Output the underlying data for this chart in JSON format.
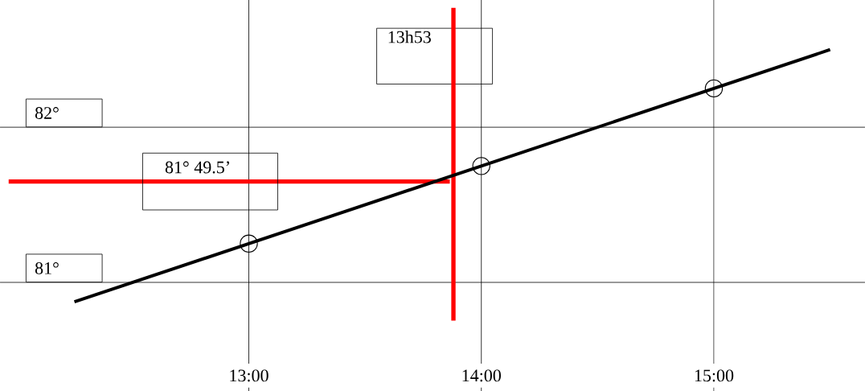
{
  "chart_data": {
    "type": "line",
    "series": [
      {
        "type": "scatter",
        "color": "#000000",
        "marker": "circle",
        "x": [
          13,
          14,
          15
        ],
        "values": [
          81.25,
          81.75,
          82.25
        ]
      },
      {
        "color": "#000000",
        "marker": "none",
        "x": [
          12.25,
          15.5
        ],
        "values": [
          80.875,
          82.5
        ]
      }
    ],
    "ref_lines": [
      {
        "axis": "x",
        "value": 13.88,
        "label": "13h53",
        "color": "#ff0000"
      },
      {
        "axis": "y",
        "value": 81.65,
        "label": "81° 49.5’",
        "color": "#ff0000"
      }
    ],
    "xlim": [
      11.93,
      15.65
    ],
    "ylim": [
      80.3,
      82.82
    ],
    "xticks": [
      {
        "value": 13,
        "label": "13:00"
      },
      {
        "value": 14,
        "label": "14:00"
      },
      {
        "value": 15,
        "label": "15:00"
      }
    ],
    "yticks": [
      {
        "value": 81,
        "label": "81°"
      },
      {
        "value": 82,
        "label": "82°"
      }
    ],
    "grid": true
  }
}
